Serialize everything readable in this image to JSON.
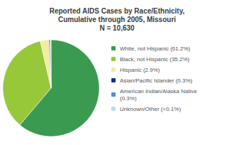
{
  "chart_data": {
    "type": "pie",
    "title": "Reported AIDS Cases by Race/Ethnicity,\nCumulative through 2005, Missouri\nN = 10,630",
    "categories": [
      "White, not Hispanic (61.2%)",
      "Black, not Hispanic (35.2%)",
      "Hispanic (2.9%)",
      "Asian/Pacific Islander (0.3%)",
      "American Indian/Alaska Native\n(0.3%)",
      "Unknown/Other (<0.1%)"
    ],
    "values": [
      61.2,
      35.2,
      2.9,
      0.3,
      0.3,
      0.1
    ],
    "colors": [
      "#3a9a50",
      "#96c83a",
      "#f0eda0",
      "#1a2d8a",
      "#4a90d9",
      "#b8dff0"
    ],
    "legend": "right"
  }
}
